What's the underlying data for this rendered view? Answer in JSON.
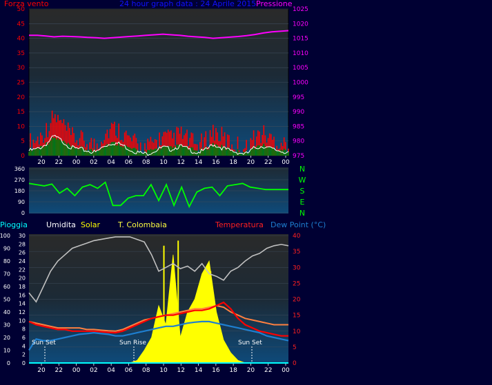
{
  "header": {
    "left_label": "Forza vento",
    "title": "24 hour graph data : 24 Aprile 2015",
    "right_label": "Pressione"
  },
  "bottom_legend": {
    "rain": "Pioggia",
    "humidity": "Umidita",
    "solar": "Solar",
    "temp_colombaia": "T. Colombaia",
    "temperature": "Temperatura",
    "dew_point": "Dew Point (°C)"
  },
  "annotations": {
    "sunset_1": "Sun Set",
    "sunrise": "Sun Rise",
    "sunset_2": "Sun Set"
  },
  "colors": {
    "background": "#000033",
    "plot_top": "#2a2a2a",
    "plot_bottom": "#0e4a7a",
    "wind": "#ff0000",
    "wind_avg": "#ffffff",
    "wind_green": "#008000",
    "pressure": "#ff00ff",
    "direction": "#00ff00",
    "humidity": "#c0c0c0",
    "solar": "#ffff00",
    "temperature": "#ff0000",
    "temp_colombaia": "#ff8040",
    "dew_point": "#1e7fd0",
    "rain": "#00ffff"
  },
  "chart_data": [
    {
      "type": "line",
      "name_hint": "wind-pressure",
      "x_ticks": [
        "20",
        "22",
        "00",
        "02",
        "04",
        "06",
        "08",
        "10",
        "12",
        "14",
        "16",
        "18",
        "20",
        "22",
        "00"
      ],
      "y_left_ticks": [
        "0",
        "5",
        "10",
        "15",
        "20",
        "25",
        "30",
        "35",
        "40",
        "45",
        "50"
      ],
      "y_left_range": [
        0,
        50
      ],
      "y_right_ticks": [
        "975",
        "980",
        "985",
        "990",
        "995",
        "1000",
        "1005",
        "1010",
        "1015",
        "1020",
        "1025"
      ],
      "y_right_range": [
        975,
        1025
      ],
      "series": [
        {
          "name": "Forza vento",
          "axis": "left",
          "values": [
            3,
            4,
            7,
            12,
            9,
            5,
            4,
            3,
            2,
            6,
            8,
            7,
            4,
            2,
            1,
            3,
            5,
            4,
            6,
            4,
            2,
            3,
            7,
            5,
            3,
            2,
            1,
            5,
            6,
            4,
            3,
            2
          ]
        },
        {
          "name": "Pressione",
          "axis": "right",
          "values": [
            1016,
            1016,
            1015.8,
            1015.5,
            1015.7,
            1015.6,
            1015.5,
            1015.3,
            1015.2,
            1015,
            1015.2,
            1015.4,
            1015.6,
            1015.8,
            1016,
            1016.2,
            1016.4,
            1016.2,
            1016,
            1015.7,
            1015.5,
            1015.3,
            1015,
            1015.2,
            1015.4,
            1015.6,
            1015.9,
            1016.3,
            1016.8,
            1017.2,
            1017.4,
            1017.6
          ]
        }
      ]
    },
    {
      "type": "line",
      "name_hint": "wind-direction",
      "y_ticks": [
        "0",
        "90",
        "180",
        "270",
        "360"
      ],
      "y_range": [
        0,
        360
      ],
      "compass_labels": [
        "N",
        "W",
        "S",
        "E",
        "N"
      ],
      "series": [
        {
          "name": "direction",
          "values": [
            240,
            230,
            220,
            235,
            160,
            200,
            140,
            210,
            230,
            200,
            250,
            60,
            60,
            120,
            140,
            140,
            230,
            100,
            230,
            60,
            210,
            50,
            170,
            200,
            210,
            140,
            220,
            230,
            240,
            210,
            200,
            190,
            190,
            190,
            190
          ]
        }
      ]
    },
    {
      "type": "line",
      "name_hint": "rain-humidity-solar-temp",
      "y_rain_ticks": [
        "0",
        "10",
        "20",
        "30",
        "40",
        "50",
        "60",
        "70",
        "80",
        "90",
        "100"
      ],
      "y_humidity_ticks": [
        "0",
        "2",
        "4",
        "6",
        "8",
        "10",
        "12",
        "14",
        "16",
        "18",
        "20",
        "22",
        "24",
        "26",
        "28",
        "30"
      ],
      "y_temp_ticks": [
        "0",
        "5",
        "10",
        "15",
        "20",
        "25",
        "30",
        "35",
        "40"
      ],
      "y_temp_range": [
        0,
        40
      ],
      "series": [
        {
          "name": "Umidita",
          "values": [
            55,
            48,
            60,
            72,
            80,
            85,
            90,
            92,
            94,
            96,
            97,
            98,
            99,
            99,
            99,
            97,
            95,
            85,
            72,
            75,
            78,
            74,
            76,
            72,
            78,
            70,
            68,
            65,
            72,
            75,
            80,
            84,
            86,
            90,
            92,
            93,
            92
          ]
        },
        {
          "name": "Solar",
          "values": [
            0,
            0,
            0,
            0,
            0,
            0,
            0,
            0,
            0,
            0,
            0,
            0,
            0,
            0,
            0,
            2,
            10,
            20,
            45,
            30,
            85,
            20,
            40,
            50,
            70,
            80,
            40,
            18,
            8,
            2,
            0,
            0,
            0,
            0,
            0,
            0,
            0
          ]
        },
        {
          "name": "Temperatura",
          "values": [
            13,
            12,
            11.5,
            11,
            10.5,
            10.5,
            10,
            10,
            10,
            10,
            9.8,
            9.6,
            9.5,
            10,
            11,
            12,
            13,
            14,
            14.5,
            15,
            15,
            15.5,
            16,
            16.5,
            16.5,
            17,
            18,
            19,
            17,
            14,
            12,
            11,
            10,
            9.5,
            9,
            8.5,
            8.5
          ]
        },
        {
          "name": "T. Colombaia",
          "values": [
            13,
            12.5,
            12,
            11.5,
            11,
            11,
            11,
            11,
            10.5,
            10.5,
            10.3,
            10.1,
            10,
            10.5,
            11.5,
            12.5,
            13.5,
            14,
            14.5,
            15,
            15.5,
            16,
            16.5,
            17,
            17,
            17.5,
            18,
            17.5,
            16,
            15,
            14,
            13.5,
            13,
            12.5,
            12,
            12,
            12
          ]
        },
        {
          "name": "Dew Point",
          "values": [
            4,
            7.5,
            7,
            7,
            7.5,
            8,
            8.5,
            9,
            9.2,
            9.5,
            9.2,
            9,
            8.5,
            8.5,
            9,
            9.5,
            10,
            10.5,
            11,
            11.5,
            11.5,
            12,
            12.5,
            12.8,
            13,
            13,
            12.5,
            12,
            11.5,
            11,
            10.5,
            10,
            9.5,
            8.5,
            8,
            7.5,
            7
          ]
        },
        {
          "name": "Pioggia",
          "values": [
            0,
            0,
            0,
            0,
            0,
            0,
            0,
            0,
            0,
            0,
            0,
            0,
            0,
            0,
            0,
            0,
            0,
            0,
            0,
            0,
            0,
            0,
            0,
            0,
            0,
            0,
            0,
            0,
            0,
            0,
            0,
            0,
            0,
            0,
            0,
            0,
            0
          ]
        }
      ]
    }
  ]
}
